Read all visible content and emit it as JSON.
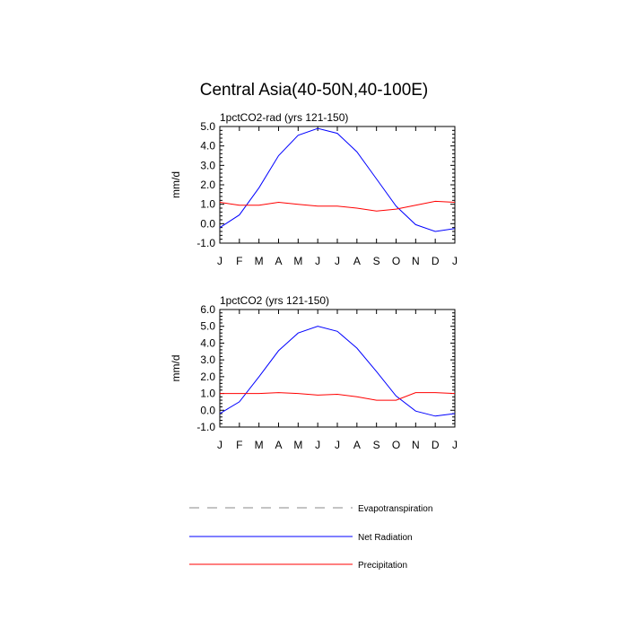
{
  "figure": {
    "title": "Central Asia(40-50N,40-100E)"
  },
  "chart_data": [
    {
      "type": "line",
      "title": "1pctCO2-rad (yrs 121-150)",
      "xlabel": "",
      "ylabel": "mm/d",
      "categories": [
        "J",
        "F",
        "M",
        "A",
        "M",
        "J",
        "J",
        "A",
        "S",
        "O",
        "N",
        "D",
        "J"
      ],
      "ylim": [
        -1.0,
        5.0
      ],
      "yticks": [
        "-1.0",
        "0.0",
        "1.0",
        "2.0",
        "3.0",
        "4.0",
        "5.0"
      ],
      "grid": false,
      "series": [
        {
          "name": "Net Radiation",
          "color": "#0000ff",
          "values": [
            -0.2,
            0.45,
            1.85,
            3.5,
            4.55,
            4.9,
            4.65,
            3.7,
            2.3,
            0.9,
            -0.05,
            -0.4,
            -0.25
          ]
        },
        {
          "name": "Precipitation",
          "color": "#ff0000",
          "values": [
            1.1,
            0.95,
            0.95,
            1.1,
            1.0,
            0.9,
            0.9,
            0.8,
            0.65,
            0.75,
            0.95,
            1.15,
            1.1
          ]
        }
      ]
    },
    {
      "type": "line",
      "title": "1pctCO2 (yrs 121-150)",
      "xlabel": "",
      "ylabel": "mm/d",
      "categories": [
        "J",
        "F",
        "M",
        "A",
        "M",
        "J",
        "J",
        "A",
        "S",
        "O",
        "N",
        "D",
        "J"
      ],
      "ylim": [
        -1.0,
        6.0
      ],
      "yticks": [
        "-1.0",
        "0.0",
        "1.0",
        "2.0",
        "3.0",
        "4.0",
        "5.0",
        "6.0"
      ],
      "grid": false,
      "series": [
        {
          "name": "Net Radiation",
          "color": "#0000ff",
          "values": [
            -0.2,
            0.5,
            2.0,
            3.55,
            4.6,
            5.0,
            4.7,
            3.7,
            2.3,
            0.85,
            -0.05,
            -0.35,
            -0.2
          ]
        },
        {
          "name": "Precipitation",
          "color": "#ff0000",
          "values": [
            1.0,
            1.0,
            1.0,
            1.05,
            1.0,
            0.9,
            0.95,
            0.8,
            0.6,
            0.6,
            1.05,
            1.05,
            1.0
          ]
        }
      ]
    }
  ],
  "legend": {
    "placement": "bottom",
    "items": [
      {
        "label": "Evapotranspiration",
        "color": "#888888",
        "dash": true
      },
      {
        "label": "Net Radiation",
        "color": "#0000ff",
        "dash": false
      },
      {
        "label": "Precipitation",
        "color": "#ff0000",
        "dash": false
      }
    ]
  }
}
